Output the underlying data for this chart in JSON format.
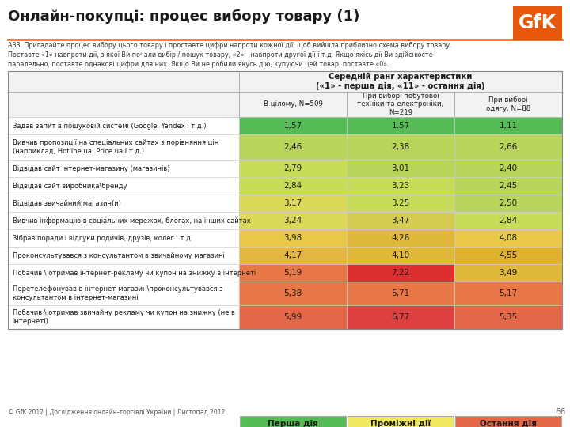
{
  "title": "Онлайн-покупці: процес вибору товару (1)",
  "subtitle": "А33. Пригадайте процес вибору цього товару і проставте цифри напроти кожної дії, щоб вийшла приблизно схема вибору товару.\nПоставте «1» навпроти дії, з якої Ви почали вибір / пошук товару, «2» - навпроти другої дії і т.д. Якщо якісь дії Ви здійснюєте\nпаралельно, поставте однакові цифри для них. Якщо Ви не робили якусь дію, купуючи цей товар, поставте «0».",
  "footer": "© GfK 2012 | Дослідження онлайн-торгівлі України | Листопад 2012",
  "page_num": "66",
  "col_header_main": "Середній ранг характеристики\n(«1» - перша дія, «11» - остання дія)",
  "col_headers": [
    "В цілому, N=509",
    "При виборі побутової\nтехніки та електроніки,\nN=219",
    "При виборі\nодягу, N=88"
  ],
  "row_labels": [
    "Задав запит в пошуковій системі (Google, Yandex і т.д.)",
    "Вивчив пропозиції на спеціальних сайтах з порівняння цін\n(наприклад, Hotline.ua, Price.ua і т.д.)",
    "Відвідав сайт інтернет-магазину (магазинів)",
    "Відвідав сайт виробника\\бренду",
    "Відвідав звичайний магазин(и)",
    "Вивчив інформацію в соціальних мережах, блогах, на інших сайтах",
    "Зібрав поради і відгуки родичів, друзів, колег і т.д.",
    "Проконсультувався з консультантом в звичайному магазині",
    "Побачив \\ отримав інтернет-рекламу чи купон на знижку в інтернеті",
    "Перетелефонував в інтернет-магазин\\проконсультувався з\nконсультантом в інтернет-магазині",
    "Побачив \\ отримав звичайну рекламу чи купон на знижку (не в\nінтернеті)"
  ],
  "values_str": [
    [
      "1,57",
      "1,57",
      "1,11"
    ],
    [
      "2,46",
      "2,38",
      "2,66"
    ],
    [
      "2,79",
      "3,01",
      "2,40"
    ],
    [
      "2,84",
      "3,23",
      "2,45"
    ],
    [
      "3,17",
      "3,25",
      "2,50"
    ],
    [
      "3,24",
      "3,47",
      "2,84"
    ],
    [
      "3,98",
      "4,26",
      "4,08"
    ],
    [
      "4,17",
      "4,10",
      "4,55"
    ],
    [
      "5,19",
      "7,22",
      "3,49"
    ],
    [
      "5,38",
      "5,71",
      "5,17"
    ],
    [
      "5,99",
      "6,77",
      "5,35"
    ]
  ],
  "cell_colors": [
    [
      "#57bb57",
      "#57bb57",
      "#57bb57"
    ],
    [
      "#b8d45a",
      "#b8d45a",
      "#b8d45a"
    ],
    [
      "#c8dc5a",
      "#b8d45a",
      "#b8d45a"
    ],
    [
      "#c8dc5a",
      "#c8dc5a",
      "#b8d45a"
    ],
    [
      "#dcd85a",
      "#c8dc5a",
      "#b8d45a"
    ],
    [
      "#dcd85a",
      "#d4cc50",
      "#c8dc5a"
    ],
    [
      "#e8c848",
      "#e0b83c",
      "#e8c848"
    ],
    [
      "#e4b840",
      "#e0b83c",
      "#e0b030"
    ],
    [
      "#e87848",
      "#dc3030",
      "#e0b83c"
    ],
    [
      "#e87848",
      "#e87848",
      "#e87848"
    ],
    [
      "#e46848",
      "#dc4040",
      "#e46848"
    ]
  ],
  "legend_colors": [
    "#57bb57",
    "#f0e860",
    "#e46848"
  ],
  "legend_labels": [
    "Перша дія",
    "Проміжні дії",
    "Остання дія"
  ],
  "orange_color": "#E8580A"
}
